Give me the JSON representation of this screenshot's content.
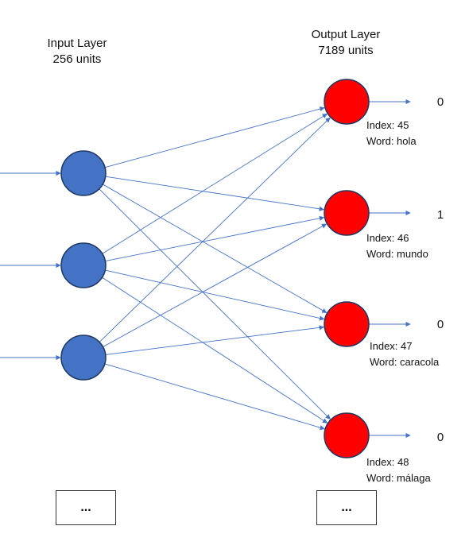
{
  "input_layer": {
    "title": "Input Layer",
    "subtitle": "256 units",
    "node_color": "#4472c4",
    "node_count": 3,
    "more_label": "..."
  },
  "output_layer": {
    "title": "Output Layer",
    "subtitle": "7189 units",
    "node_color": "#ff0000",
    "more_label": "...",
    "nodes": [
      {
        "index_text": "Index: 45",
        "word_text": "Word: hola",
        "value": "0"
      },
      {
        "index_text": "Index: 46",
        "word_text": "Word: mundo",
        "value": "1"
      },
      {
        "index_text": "Index: 47",
        "word_text": "Word: caracola",
        "value": "0"
      },
      {
        "index_text": "Index: 48",
        "word_text": "Word: málaga",
        "value": "0"
      }
    ]
  },
  "edge_color": "#4472c4"
}
